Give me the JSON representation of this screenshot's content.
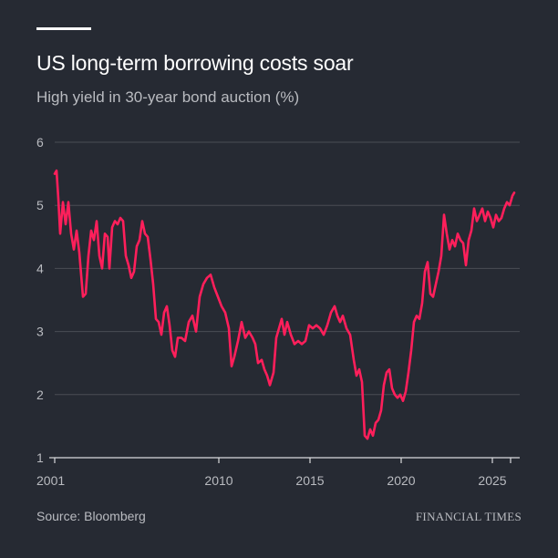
{
  "chart_data": {
    "type": "line",
    "title": "US long-term borrowing costs soar",
    "subtitle": "High yield in 30-year bond auction (%)",
    "source": "Source: Bloomberg",
    "publisher": "FINANCIAL TIMES",
    "xlabel": "",
    "ylabel": "",
    "xlim": [
      2001,
      2026.5
    ],
    "ylim": [
      1,
      6
    ],
    "x_ticks": [
      2001,
      2010,
      2015,
      2020,
      2025
    ],
    "x_tick_labels": [
      "2001",
      "2010",
      "2015",
      "2020",
      "2025"
    ],
    "y_ticks": [
      1,
      2,
      3,
      4,
      5,
      6
    ],
    "y_tick_labels": [
      "1",
      "2",
      "3",
      "4",
      "5",
      "6"
    ],
    "grid": true,
    "colors": {
      "background": "#262a33",
      "line": "#ff1f5b",
      "grid": "#4a4d55",
      "text": "#b9bbc0",
      "title": "#ffffff"
    },
    "series": [
      {
        "values": [
          [
            2001.0,
            5.5
          ],
          [
            2001.1,
            5.55
          ],
          [
            2001.2,
            5.1
          ],
          [
            2001.3,
            4.55
          ],
          [
            2001.45,
            5.05
          ],
          [
            2001.6,
            4.7
          ],
          [
            2001.75,
            5.05
          ],
          [
            2001.9,
            4.55
          ],
          [
            2002.05,
            4.3
          ],
          [
            2002.2,
            4.6
          ],
          [
            2002.35,
            4.25
          ],
          [
            2002.55,
            3.55
          ],
          [
            2002.7,
            3.6
          ],
          [
            2002.85,
            4.2
          ],
          [
            2003.0,
            4.6
          ],
          [
            2003.15,
            4.45
          ],
          [
            2003.3,
            4.75
          ],
          [
            2003.45,
            4.2
          ],
          [
            2003.6,
            4.0
          ],
          [
            2003.75,
            4.55
          ],
          [
            2003.9,
            4.5
          ],
          [
            2004.0,
            4.0
          ],
          [
            2004.15,
            4.65
          ],
          [
            2004.3,
            4.75
          ],
          [
            2004.45,
            4.7
          ],
          [
            2004.6,
            4.8
          ],
          [
            2004.75,
            4.75
          ],
          [
            2004.9,
            4.2
          ],
          [
            2005.05,
            4.05
          ],
          [
            2005.2,
            3.85
          ],
          [
            2005.35,
            3.95
          ],
          [
            2005.5,
            4.35
          ],
          [
            2005.65,
            4.45
          ],
          [
            2005.8,
            4.75
          ],
          [
            2005.95,
            4.55
          ],
          [
            2006.1,
            4.5
          ],
          [
            2006.25,
            4.15
          ],
          [
            2006.4,
            3.75
          ],
          [
            2006.55,
            3.2
          ],
          [
            2006.7,
            3.15
          ],
          [
            2006.85,
            2.95
          ],
          [
            2007.0,
            3.3
          ],
          [
            2007.15,
            3.4
          ],
          [
            2007.3,
            3.1
          ],
          [
            2007.45,
            2.7
          ],
          [
            2007.6,
            2.6
          ],
          [
            2007.75,
            2.9
          ],
          [
            2007.95,
            2.9
          ],
          [
            2008.15,
            2.85
          ],
          [
            2008.35,
            3.15
          ],
          [
            2008.55,
            3.25
          ],
          [
            2008.75,
            3.0
          ],
          [
            2008.95,
            3.55
          ],
          [
            2009.15,
            3.75
          ],
          [
            2009.35,
            3.85
          ],
          [
            2009.55,
            3.9
          ],
          [
            2009.75,
            3.7
          ],
          [
            2009.95,
            3.55
          ],
          [
            2010.15,
            3.4
          ],
          [
            2010.35,
            3.3
          ],
          [
            2010.55,
            3.05
          ],
          [
            2010.7,
            2.45
          ],
          [
            2010.85,
            2.6
          ],
          [
            2011.05,
            2.85
          ],
          [
            2011.25,
            3.15
          ],
          [
            2011.45,
            2.9
          ],
          [
            2011.65,
            3.0
          ],
          [
            2011.85,
            2.9
          ],
          [
            2012.0,
            2.8
          ],
          [
            2012.15,
            2.5
          ],
          [
            2012.35,
            2.55
          ],
          [
            2012.5,
            2.4
          ],
          [
            2012.65,
            2.3
          ],
          [
            2012.8,
            2.15
          ],
          [
            2013.0,
            2.35
          ],
          [
            2013.15,
            2.9
          ],
          [
            2013.3,
            3.05
          ],
          [
            2013.45,
            3.2
          ],
          [
            2013.6,
            2.95
          ],
          [
            2013.75,
            3.15
          ],
          [
            2013.95,
            2.95
          ],
          [
            2014.15,
            2.8
          ],
          [
            2014.35,
            2.85
          ],
          [
            2014.55,
            2.8
          ],
          [
            2014.75,
            2.85
          ],
          [
            2014.95,
            3.1
          ],
          [
            2015.15,
            3.05
          ],
          [
            2015.35,
            3.1
          ],
          [
            2015.55,
            3.05
          ],
          [
            2015.75,
            2.95
          ],
          [
            2015.95,
            3.1
          ],
          [
            2016.15,
            3.3
          ],
          [
            2016.35,
            3.4
          ],
          [
            2016.5,
            3.25
          ],
          [
            2016.65,
            3.15
          ],
          [
            2016.8,
            3.25
          ],
          [
            2017.0,
            3.05
          ],
          [
            2017.2,
            2.95
          ],
          [
            2017.4,
            2.55
          ],
          [
            2017.55,
            2.3
          ],
          [
            2017.7,
            2.4
          ],
          [
            2017.85,
            2.2
          ],
          [
            2018.0,
            1.35
          ],
          [
            2018.15,
            1.3
          ],
          [
            2018.3,
            1.45
          ],
          [
            2018.45,
            1.35
          ],
          [
            2018.6,
            1.55
          ],
          [
            2018.75,
            1.6
          ],
          [
            2018.9,
            1.75
          ],
          [
            2019.05,
            2.15
          ],
          [
            2019.2,
            2.35
          ],
          [
            2019.35,
            2.4
          ],
          [
            2019.5,
            2.1
          ],
          [
            2019.65,
            2.0
          ],
          [
            2019.8,
            1.95
          ],
          [
            2019.95,
            2.0
          ],
          [
            2020.1,
            1.9
          ],
          [
            2020.25,
            2.05
          ],
          [
            2020.4,
            2.35
          ],
          [
            2020.55,
            2.7
          ],
          [
            2020.7,
            3.15
          ],
          [
            2020.85,
            3.25
          ],
          [
            2021.0,
            3.2
          ],
          [
            2021.15,
            3.45
          ],
          [
            2021.3,
            3.95
          ],
          [
            2021.45,
            4.1
          ],
          [
            2021.6,
            3.6
          ],
          [
            2021.75,
            3.55
          ],
          [
            2021.9,
            3.75
          ],
          [
            2022.05,
            3.95
          ],
          [
            2022.2,
            4.2
          ],
          [
            2022.35,
            4.85
          ],
          [
            2022.5,
            4.55
          ],
          [
            2022.65,
            4.3
          ],
          [
            2022.8,
            4.45
          ],
          [
            2022.95,
            4.35
          ],
          [
            2023.1,
            4.55
          ],
          [
            2023.25,
            4.45
          ],
          [
            2023.4,
            4.4
          ],
          [
            2023.55,
            4.05
          ],
          [
            2023.7,
            4.45
          ],
          [
            2023.85,
            4.6
          ],
          [
            2024.0,
            4.95
          ],
          [
            2024.15,
            4.75
          ],
          [
            2024.3,
            4.85
          ],
          [
            2024.45,
            4.95
          ],
          [
            2024.6,
            4.75
          ],
          [
            2024.75,
            4.9
          ],
          [
            2024.9,
            4.8
          ],
          [
            2025.05,
            4.65
          ],
          [
            2025.2,
            4.85
          ],
          [
            2025.35,
            4.75
          ],
          [
            2025.5,
            4.8
          ],
          [
            2025.65,
            4.95
          ],
          [
            2025.8,
            5.05
          ],
          [
            2025.95,
            5.0
          ],
          [
            2026.1,
            5.15
          ],
          [
            2026.2,
            5.2
          ]
        ]
      }
    ]
  }
}
